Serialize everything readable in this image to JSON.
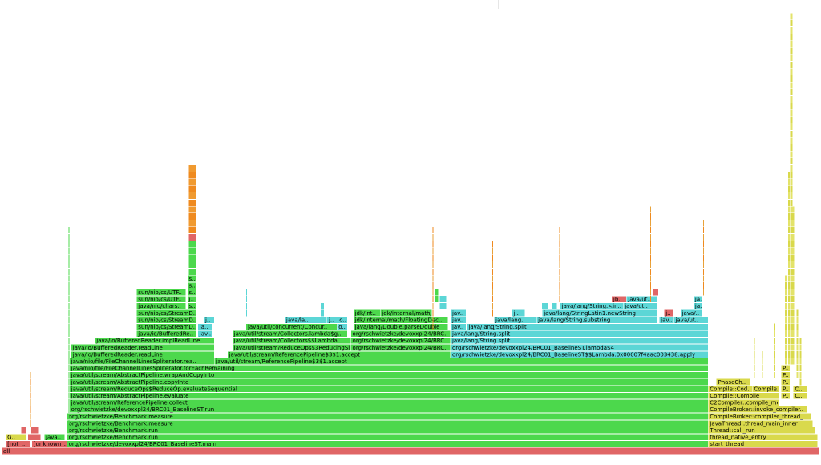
{
  "chart_data": {
    "type": "flamegraph",
    "x_unit": "fraction of total samples",
    "colors": {
      "native": "#e06666",
      "java": "#4cd84c",
      "jit": "#5cd6d6",
      "cpp": "#d9d94c",
      "inlined": "#ef8a1f",
      "kernel": "#e8a23a"
    },
    "frames": [
      {
        "label": "all",
        "start": 0.0,
        "end": 1.0,
        "depth": 0,
        "kind": "native"
      },
      {
        "label": "[not_..",
        "start": 0.005,
        "end": 0.035,
        "depth": 1,
        "kind": "native"
      },
      {
        "label": "[unknown_..",
        "start": 0.037,
        "end": 0.08,
        "depth": 1,
        "kind": "native"
      },
      {
        "label": "org/rschwietzke/devoxxpl24/BRC01_BaselineST.main",
        "start": 0.08,
        "end": 0.864,
        "depth": 1,
        "kind": "java"
      },
      {
        "label": "start_thread",
        "start": 0.864,
        "end": 0.998,
        "depth": 1,
        "kind": "cpp"
      },
      {
        "label": "G..",
        "start": 0.005,
        "end": 0.03,
        "depth": 2,
        "kind": "cpp"
      },
      {
        "label": "",
        "start": 0.032,
        "end": 0.048,
        "depth": 2,
        "kind": "native"
      },
      {
        "label": "java..",
        "start": 0.052,
        "end": 0.077,
        "depth": 2,
        "kind": "java"
      },
      {
        "label": "org/rschwietzke/Benchmark.run",
        "start": 0.08,
        "end": 0.864,
        "depth": 2,
        "kind": "java"
      },
      {
        "label": "thread_native_entry",
        "start": 0.864,
        "end": 0.998,
        "depth": 2,
        "kind": "cpp"
      },
      {
        "label": "",
        "start": 0.024,
        "end": 0.03,
        "depth": 3,
        "kind": "native"
      },
      {
        "label": "",
        "start": 0.036,
        "end": 0.046,
        "depth": 3,
        "kind": "native"
      },
      {
        "label": "org/rschwietzke/Benchmark.run",
        "start": 0.08,
        "end": 0.864,
        "depth": 3,
        "kind": "java"
      },
      {
        "label": "Thread::call_run",
        "start": 0.864,
        "end": 0.995,
        "depth": 3,
        "kind": "cpp"
      },
      {
        "label": "org/rschwietzke/Benchmark.measure",
        "start": 0.08,
        "end": 0.864,
        "depth": 4,
        "kind": "java"
      },
      {
        "label": "JavaThread::thread_main_inner",
        "start": 0.864,
        "end": 0.992,
        "depth": 4,
        "kind": "cpp"
      },
      {
        "label": "org/rschwietzke/Benchmark.measure",
        "start": 0.08,
        "end": 0.864,
        "depth": 5,
        "kind": "java"
      },
      {
        "label": "CompileBroker::compiler_thread_..",
        "start": 0.864,
        "end": 0.99,
        "depth": 5,
        "kind": "cpp"
      },
      {
        "label": "org/rschwietzke/devoxxpl24/BRC01_BaselineST.run",
        "start": 0.083,
        "end": 0.864,
        "depth": 6,
        "kind": "java"
      },
      {
        "label": "CompileBroker::invoke_compiler..",
        "start": 0.864,
        "end": 0.985,
        "depth": 6,
        "kind": "cpp"
      },
      {
        "label": "java/util/stream/ReferencePipeline.collect",
        "start": 0.083,
        "end": 0.864,
        "depth": 7,
        "kind": "java"
      },
      {
        "label": "C2Compiler::compile_method",
        "start": 0.864,
        "end": 0.95,
        "depth": 7,
        "kind": "cpp"
      },
      {
        "label": "java/util/stream/AbstractPipeline.evaluate",
        "start": 0.083,
        "end": 0.864,
        "depth": 8,
        "kind": "java"
      },
      {
        "label": "Compile::Compile",
        "start": 0.864,
        "end": 0.95,
        "depth": 8,
        "kind": "cpp"
      },
      {
        "label": "P..",
        "start": 0.953,
        "end": 0.964,
        "depth": 8,
        "kind": "cpp"
      },
      {
        "label": "C..",
        "start": 0.968,
        "end": 0.985,
        "depth": 8,
        "kind": "cpp"
      },
      {
        "label": "java/util/stream/ReduceOps$ReduceOp.evaluateSequential",
        "start": 0.083,
        "end": 0.864,
        "depth": 9,
        "kind": "java"
      },
      {
        "label": "Compile::Cod..",
        "start": 0.864,
        "end": 0.918,
        "depth": 9,
        "kind": "cpp"
      },
      {
        "label": "Compile..",
        "start": 0.918,
        "end": 0.95,
        "depth": 9,
        "kind": "cpp"
      },
      {
        "label": "P..",
        "start": 0.953,
        "end": 0.964,
        "depth": 9,
        "kind": "cpp"
      },
      {
        "label": "C..",
        "start": 0.968,
        "end": 0.985,
        "depth": 9,
        "kind": "cpp"
      },
      {
        "label": "java/util/stream/AbstractPipeline.copyInto",
        "start": 0.083,
        "end": 0.864,
        "depth": 10,
        "kind": "java"
      },
      {
        "label": "PhaseCh..",
        "start": 0.874,
        "end": 0.915,
        "depth": 10,
        "kind": "cpp"
      },
      {
        "label": "P..",
        "start": 0.953,
        "end": 0.964,
        "depth": 10,
        "kind": "cpp"
      },
      {
        "label": "java/util/stream/AbstractPipeline.wrapAndCopyInto",
        "start": 0.083,
        "end": 0.864,
        "depth": 11,
        "kind": "java"
      },
      {
        "label": "P..",
        "start": 0.953,
        "end": 0.964,
        "depth": 11,
        "kind": "cpp"
      },
      {
        "label": "java/nio/file/FileChannelLinesSpliterator.forEachRemaining",
        "start": 0.083,
        "end": 0.864,
        "depth": 12,
        "kind": "java"
      },
      {
        "label": "P..",
        "start": 0.953,
        "end": 0.964,
        "depth": 12,
        "kind": "cpp"
      },
      {
        "label": "java/nio/file/FileChannelLinesSpliterator.rea..",
        "start": 0.083,
        "end": 0.26,
        "depth": 13,
        "kind": "java"
      },
      {
        "label": "java/util/stream/ReferencePipeline$3$1.accept",
        "start": 0.26,
        "end": 0.864,
        "depth": 13,
        "kind": "java"
      },
      {
        "label": "java/io/BufferedReader.readLine",
        "start": 0.085,
        "end": 0.26,
        "depth": 14,
        "kind": "java"
      },
      {
        "label": "java/util/stream/ReferencePipeline$3$1.accept",
        "start": 0.276,
        "end": 0.549,
        "depth": 14,
        "kind": "java"
      },
      {
        "label": "org/rschwietzke/devoxxpl24/BRC01_BaselineST$$Lambda.0x00007f4aac003438.apply",
        "start": 0.549,
        "end": 0.864,
        "depth": 14,
        "kind": "jit"
      },
      {
        "label": "java/io/BufferedReader.readLine",
        "start": 0.085,
        "end": 0.26,
        "depth": 15,
        "kind": "java"
      },
      {
        "label": "java/util/stream/ReduceOps$3ReducingSink.accept",
        "start": 0.282,
        "end": 0.427,
        "depth": 15,
        "kind": "java"
      },
      {
        "label": "org/rschwietzke/devoxxpl24/BRC..",
        "start": 0.427,
        "end": 0.549,
        "depth": 15,
        "kind": "java"
      },
      {
        "label": "org/rschwietzke/devoxxpl24/BRC01_BaselineST.lambda$4",
        "start": 0.549,
        "end": 0.864,
        "depth": 15,
        "kind": "jit"
      },
      {
        "label": "java/io/BufferedReader.implReadLine",
        "start": 0.114,
        "end": 0.26,
        "depth": 16,
        "kind": "java"
      },
      {
        "label": "java/util/stream/Collectors$$Lambda..",
        "start": 0.282,
        "end": 0.427,
        "depth": 16,
        "kind": "java"
      },
      {
        "label": "org/rschwietzke/devoxxpl24/BRC..",
        "start": 0.427,
        "end": 0.549,
        "depth": 16,
        "kind": "java"
      },
      {
        "label": "java/lang/String.split",
        "start": 0.549,
        "end": 0.864,
        "depth": 16,
        "kind": "jit"
      },
      {
        "label": "java/io/BufferedRe..",
        "start": 0.165,
        "end": 0.238,
        "depth": 17,
        "kind": "java"
      },
      {
        "label": "jav..",
        "start": 0.24,
        "end": 0.258,
        "depth": 17,
        "kind": "jit"
      },
      {
        "label": "java/util/stream/Collectors.lambda$g..",
        "start": 0.282,
        "end": 0.423,
        "depth": 17,
        "kind": "java"
      },
      {
        "label": "org/rschwietzke/devoxxpl24/BRC..",
        "start": 0.427,
        "end": 0.549,
        "depth": 17,
        "kind": "java"
      },
      {
        "label": "java/lang/String.split",
        "start": 0.549,
        "end": 0.864,
        "depth": 17,
        "kind": "jit"
      },
      {
        "label": "sun/nio/cs/StreamD..",
        "start": 0.165,
        "end": 0.238,
        "depth": 18,
        "kind": "java"
      },
      {
        "label": "ja..",
        "start": 0.24,
        "end": 0.258,
        "depth": 18,
        "kind": "jit"
      },
      {
        "label": "java/util/concurrent/Concur..",
        "start": 0.299,
        "end": 0.41,
        "depth": 18,
        "kind": "java"
      },
      {
        "label": "o..",
        "start": 0.41,
        "end": 0.423,
        "depth": 18,
        "kind": "jit"
      },
      {
        "label": "java/lang/Double.parseDouble",
        "start": 0.43,
        "end": 0.546,
        "depth": 18,
        "kind": "java"
      },
      {
        "label": "jav..",
        "start": 0.549,
        "end": 0.568,
        "depth": 18,
        "kind": "jit"
      },
      {
        "label": "java/lang/String.split",
        "start": 0.569,
        "end": 0.864,
        "depth": 18,
        "kind": "jit"
      },
      {
        "label": "sun/nio/cs/StreamD..",
        "start": 0.165,
        "end": 0.238,
        "depth": 19,
        "kind": "java"
      },
      {
        "label": "j..",
        "start": 0.247,
        "end": 0.26,
        "depth": 19,
        "kind": "jit"
      },
      {
        "label": "java/la..",
        "start": 0.346,
        "end": 0.398,
        "depth": 19,
        "kind": "jit"
      },
      {
        "label": "j..",
        "start": 0.398,
        "end": 0.411,
        "depth": 19,
        "kind": "jit"
      },
      {
        "label": "o..",
        "start": 0.411,
        "end": 0.423,
        "depth": 19,
        "kind": "jit"
      },
      {
        "label": "jdk/internal/math/FloatingDec..",
        "start": 0.43,
        "end": 0.546,
        "depth": 19,
        "kind": "java"
      },
      {
        "label": "jav..",
        "start": 0.549,
        "end": 0.568,
        "depth": 19,
        "kind": "jit"
      },
      {
        "label": "java/lang..",
        "start": 0.602,
        "end": 0.654,
        "depth": 19,
        "kind": "jit"
      },
      {
        "label": "java/lang/String.substring",
        "start": 0.654,
        "end": 0.802,
        "depth": 19,
        "kind": "jit"
      },
      {
        "label": "jav..",
        "start": 0.804,
        "end": 0.822,
        "depth": 19,
        "kind": "jit"
      },
      {
        "label": "java/ut..",
        "start": 0.822,
        "end": 0.864,
        "depth": 19,
        "kind": "jit"
      },
      {
        "label": "sun/nio/cs/StreamD..",
        "start": 0.165,
        "end": 0.238,
        "depth": 20,
        "kind": "java"
      },
      {
        "label": "jdk/int..",
        "start": 0.43,
        "end": 0.463,
        "depth": 20,
        "kind": "java"
      },
      {
        "label": "jdk/internal/math/Fl..",
        "start": 0.463,
        "end": 0.526,
        "depth": 20,
        "kind": "java"
      },
      {
        "label": "jav..",
        "start": 0.549,
        "end": 0.568,
        "depth": 20,
        "kind": "jit"
      },
      {
        "label": "j..",
        "start": 0.624,
        "end": 0.64,
        "depth": 20,
        "kind": "jit"
      },
      {
        "label": "java/lang/StringLatin1.newString",
        "start": 0.661,
        "end": 0.802,
        "depth": 20,
        "kind": "jit"
      },
      {
        "label": "j..",
        "start": 0.81,
        "end": 0.822,
        "depth": 20,
        "kind": "native"
      },
      {
        "label": "java/..",
        "start": 0.83,
        "end": 0.857,
        "depth": 20,
        "kind": "jit"
      },
      {
        "label": "java/nio/chars..",
        "start": 0.165,
        "end": 0.225,
        "depth": 21,
        "kind": "java"
      },
      {
        "label": "s..",
        "start": 0.227,
        "end": 0.238,
        "depth": 21,
        "kind": "java"
      },
      {
        "label": "java/lang/String.<in..",
        "start": 0.683,
        "end": 0.76,
        "depth": 21,
        "kind": "jit"
      },
      {
        "label": "java/ut..",
        "start": 0.76,
        "end": 0.802,
        "depth": 21,
        "kind": "jit"
      },
      {
        "label": "ja..",
        "start": 0.846,
        "end": 0.857,
        "depth": 21,
        "kind": "jit"
      },
      {
        "label": "sun/nio/cs/UTF..",
        "start": 0.165,
        "end": 0.225,
        "depth": 22,
        "kind": "java"
      },
      {
        "label": "j..",
        "start": 0.227,
        "end": 0.238,
        "depth": 22,
        "kind": "java"
      },
      {
        "label": "jb..",
        "start": 0.746,
        "end": 0.764,
        "depth": 22,
        "kind": "native"
      },
      {
        "label": "java/ut..",
        "start": 0.764,
        "end": 0.802,
        "depth": 22,
        "kind": "jit"
      },
      {
        "label": "ja..",
        "start": 0.846,
        "end": 0.857,
        "depth": 22,
        "kind": "jit"
      },
      {
        "label": "sun/nio/cs/UTF..",
        "start": 0.165,
        "end": 0.225,
        "depth": 23,
        "kind": "java"
      },
      {
        "label": "s..",
        "start": 0.227,
        "end": 0.238,
        "depth": 23,
        "kind": "java"
      },
      {
        "label": "s..",
        "start": 0.227,
        "end": 0.238,
        "depth": 24,
        "kind": "java"
      },
      {
        "label": "s..",
        "start": 0.227,
        "end": 0.238,
        "depth": 25,
        "kind": "java"
      }
    ]
  }
}
